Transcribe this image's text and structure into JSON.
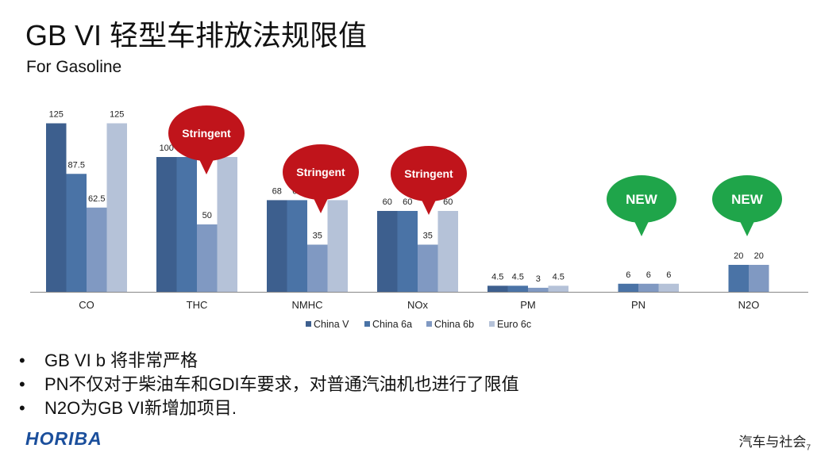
{
  "slide": {
    "title": "GB VI 轻型车排放法规限值",
    "subtitle": "For Gasoline",
    "bullets": [
      "GB VI b 将非常严格",
      "PN不仅对于柴油车和GDI车要求，对普通汽油机也进行了限值",
      "N2O为GB VI新增加项目."
    ],
    "logo_text": "HORIBA",
    "watermark": "汽车与社会",
    "page_number": "7"
  },
  "chart_data": {
    "type": "bar",
    "categories": [
      "CO",
      "THC",
      "NMHC",
      "NOx",
      "PM",
      "PN",
      "N2O"
    ],
    "series": [
      {
        "name": "China V",
        "color": "#3d5f8e",
        "values": [
          125,
          100,
          68,
          60,
          4.5,
          null,
          null
        ],
        "labels": [
          "125",
          "100",
          "68",
          "60",
          "4.5",
          "",
          ""
        ]
      },
      {
        "name": "China 6a",
        "color": "#4a73a6",
        "values": [
          87.5,
          100,
          68,
          60,
          4.5,
          6,
          20
        ],
        "labels": [
          "87.5",
          "",
          "68",
          "60",
          "4.5",
          "6",
          "20"
        ]
      },
      {
        "name": "China 6b",
        "color": "#8099c2",
        "values": [
          62.5,
          50,
          35,
          35,
          3,
          6,
          20
        ],
        "labels": [
          "62.5",
          "50",
          "35",
          "35",
          "3",
          "6",
          "20"
        ]
      },
      {
        "name": "Euro 6c",
        "color": "#b5c2d8",
        "values": [
          125,
          100,
          68,
          60,
          4.5,
          6,
          null
        ],
        "labels": [
          "125",
          "",
          "",
          "60",
          "4.5",
          "6",
          ""
        ]
      }
    ],
    "callouts": [
      {
        "text": "Stringent",
        "category": "THC",
        "color": "#c0141b"
      },
      {
        "text": "Stringent",
        "category": "NMHC",
        "color": "#c0141b"
      },
      {
        "text": "Stringent",
        "category": "NOx",
        "color": "#c0141b"
      },
      {
        "text": "NEW",
        "category": "PN",
        "color": "#1fa54a"
      },
      {
        "text": "NEW",
        "category": "N2O",
        "color": "#1fa54a"
      }
    ],
    "legend_position": "bottom",
    "grid": false
  }
}
